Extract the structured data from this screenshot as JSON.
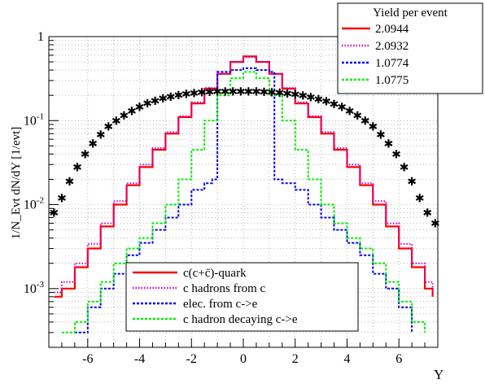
{
  "chart_data": {
    "type": "line",
    "xlabel": "Y",
    "ylabel": "1/N_Evt dN/dY [1/evt]",
    "xlim": [
      -7.5,
      7.5
    ],
    "ylim": [
      0.0002,
      1
    ],
    "y_scale": "log",
    "grid": true,
    "x_ticks": [
      "-6",
      "-4",
      "-2",
      "0",
      "2",
      "4",
      "6"
    ],
    "y_ticks": [
      "10^-3",
      "10^-2",
      "10^-1",
      "1"
    ],
    "yield_legend": {
      "title": "Yield per event",
      "entries": [
        {
          "value": "2.0944",
          "color": "#ff0000",
          "style": "solid"
        },
        {
          "value": "2.0932",
          "color": "#cc00cc",
          "style": "dotted"
        },
        {
          "value": "1.0774",
          "color": "#0000ee",
          "style": "dashed"
        },
        {
          "value": "1.0775",
          "color": "#00ee00",
          "style": "dashed"
        }
      ]
    },
    "legend_entries": [
      {
        "label": "c(c+c̄)-quark",
        "color": "#ff0000",
        "style": "solid"
      },
      {
        "label": "c hadrons from c",
        "color": "#cc00cc",
        "style": "dotted"
      },
      {
        "label": "elec. from c->e",
        "color": "#0000ee",
        "style": "dashed"
      },
      {
        "label": "c hadron decaying c->e",
        "color": "#00ee00",
        "style": "dashed"
      }
    ],
    "series": [
      {
        "color": "#ff0000",
        "x": [
          -7.3,
          -7,
          -6.5,
          -6,
          -5.5,
          -5,
          -4.5,
          -4,
          -3.5,
          -3,
          -2.5,
          -2,
          -1.5,
          -1,
          -0.5,
          0,
          0.5,
          1,
          1.5,
          2,
          2.5,
          3,
          3.5,
          4,
          4.5,
          5,
          5.5,
          6,
          6.5,
          7,
          7.3
        ],
        "y": [
          0.0008,
          0.001,
          0.0018,
          0.003,
          0.0055,
          0.01,
          0.017,
          0.028,
          0.045,
          0.07,
          0.11,
          0.16,
          0.24,
          0.36,
          0.5,
          0.58,
          0.5,
          0.36,
          0.24,
          0.16,
          0.11,
          0.07,
          0.045,
          0.028,
          0.017,
          0.01,
          0.0055,
          0.003,
          0.0018,
          0.001,
          0.0008
        ]
      },
      {
        "color": "#cc00cc",
        "x": [
          -7.3,
          -7,
          -6.5,
          -6,
          -5.5,
          -5,
          -4.5,
          -4,
          -3.5,
          -3,
          -2.5,
          -2,
          -1.5,
          -1,
          -0.5,
          0,
          0.5,
          1,
          1.5,
          2,
          2.5,
          3,
          3.5,
          4,
          4.5,
          5,
          5.5,
          6,
          6.5,
          7,
          7.3
        ],
        "y": [
          0.0009,
          0.0012,
          0.002,
          0.0034,
          0.006,
          0.011,
          0.018,
          0.03,
          0.047,
          0.073,
          0.113,
          0.165,
          0.245,
          0.36,
          0.5,
          0.57,
          0.5,
          0.36,
          0.245,
          0.165,
          0.113,
          0.073,
          0.047,
          0.03,
          0.018,
          0.011,
          0.006,
          0.0034,
          0.002,
          0.0012,
          0.0009
        ]
      },
      {
        "color": "#0000ee",
        "x": [
          -6.5,
          -6,
          -5.5,
          -5,
          -4.5,
          -4,
          -3.5,
          -3,
          -2.5,
          -2,
          -1.5,
          -1.2,
          -1,
          -0.5,
          0,
          0.5,
          1,
          1.2,
          1.5,
          2,
          2.5,
          3,
          3.5,
          4,
          4.5,
          5,
          5.5,
          6,
          6.5
        ],
        "y": [
          0.0003,
          0.0006,
          0.001,
          0.0015,
          0.0025,
          0.0035,
          0.005,
          0.007,
          0.01,
          0.015,
          0.018,
          0.02,
          0.38,
          0.4,
          0.42,
          0.4,
          0.38,
          0.02,
          0.018,
          0.015,
          0.01,
          0.007,
          0.005,
          0.0035,
          0.0025,
          0.0015,
          0.001,
          0.0006,
          0.0003
        ]
      },
      {
        "color": "#00ee00",
        "x": [
          -7,
          -6.5,
          -6,
          -5.5,
          -5,
          -4.5,
          -4,
          -3.5,
          -3,
          -2.5,
          -2,
          -1.5,
          -1,
          -0.5,
          0,
          0.5,
          1,
          1.5,
          2,
          2.5,
          3,
          3.5,
          4,
          4.5,
          5,
          5.5,
          6,
          6.5,
          7
        ],
        "y": [
          0.0003,
          0.0004,
          0.0007,
          0.0012,
          0.002,
          0.003,
          0.004,
          0.006,
          0.01,
          0.02,
          0.045,
          0.1,
          0.2,
          0.32,
          0.38,
          0.32,
          0.2,
          0.1,
          0.045,
          0.02,
          0.01,
          0.006,
          0.004,
          0.003,
          0.002,
          0.0012,
          0.0007,
          0.0004,
          0.0003
        ]
      },
      {
        "color": "#000000",
        "marker": "star",
        "x": [
          -7.3,
          -7,
          -6.7,
          -6.4,
          -6.1,
          -5.8,
          -5.5,
          -5.2,
          -4.9,
          -4.6,
          -4.3,
          -4,
          -3.7,
          -3.4,
          -3.1,
          -2.8,
          -2.5,
          -2.2,
          -1.9,
          -1.6,
          -1.3,
          -1,
          -0.7,
          -0.4,
          -0.1,
          0.2,
          0.5,
          0.8,
          1.1,
          1.4,
          1.7,
          2,
          2.3,
          2.6,
          2.9,
          3.2,
          3.5,
          3.8,
          4.1,
          4.4,
          4.7,
          5,
          5.3,
          5.6,
          5.9,
          6.2,
          6.5,
          6.8,
          7.1,
          7.4
        ],
        "y": [
          0.008,
          0.012,
          0.019,
          0.028,
          0.04,
          0.053,
          0.068,
          0.085,
          0.1,
          0.115,
          0.13,
          0.145,
          0.16,
          0.172,
          0.183,
          0.192,
          0.2,
          0.207,
          0.212,
          0.216,
          0.219,
          0.221,
          0.222,
          0.222,
          0.222,
          0.222,
          0.221,
          0.22,
          0.218,
          0.215,
          0.21,
          0.205,
          0.198,
          0.19,
          0.18,
          0.17,
          0.158,
          0.145,
          0.13,
          0.115,
          0.1,
          0.085,
          0.068,
          0.053,
          0.04,
          0.028,
          0.019,
          0.012,
          0.008,
          0.006
        ]
      }
    ]
  }
}
